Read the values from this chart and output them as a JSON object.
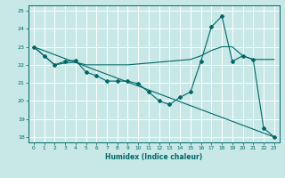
{
  "xlabel": "Humidex (Indice chaleur)",
  "ylabel": "",
  "bg_color": "#c8e8e8",
  "grid_color": "#ffffff",
  "line_color": "#006666",
  "xlim": [
    -0.5,
    23.5
  ],
  "ylim": [
    17.7,
    25.3
  ],
  "yticks": [
    18,
    19,
    20,
    21,
    22,
    23,
    24,
    25
  ],
  "xticks": [
    0,
    1,
    2,
    3,
    4,
    5,
    6,
    7,
    8,
    9,
    10,
    11,
    12,
    13,
    14,
    15,
    16,
    17,
    18,
    19,
    20,
    21,
    22,
    23
  ],
  "series_main": {
    "x": [
      0,
      1,
      2,
      3,
      4,
      5,
      6,
      7,
      8,
      9,
      10,
      11,
      12,
      13,
      14,
      15,
      16,
      17,
      18,
      19,
      20,
      21,
      22,
      23
    ],
    "y": [
      23.0,
      22.5,
      22.0,
      22.2,
      22.25,
      21.6,
      21.4,
      21.1,
      21.1,
      21.1,
      20.95,
      20.5,
      20.0,
      19.8,
      20.2,
      20.5,
      22.2,
      24.1,
      24.7,
      22.2,
      22.5,
      22.3,
      18.5,
      18.0
    ]
  },
  "series_trend": {
    "x": [
      0,
      1,
      2,
      3,
      4,
      5,
      6,
      7,
      8,
      9,
      10,
      11,
      12,
      13,
      14,
      15,
      16,
      17,
      18,
      19,
      20,
      21,
      22,
      23
    ],
    "y": [
      23.0,
      22.5,
      22.0,
      22.1,
      22.15,
      22.0,
      22.0,
      22.0,
      22.0,
      22.0,
      22.05,
      22.1,
      22.15,
      22.2,
      22.25,
      22.3,
      22.5,
      22.8,
      23.0,
      23.0,
      22.5,
      22.3,
      22.3,
      22.3
    ]
  },
  "series_diag": {
    "x": [
      0,
      23
    ],
    "y": [
      23.0,
      18.0
    ]
  }
}
